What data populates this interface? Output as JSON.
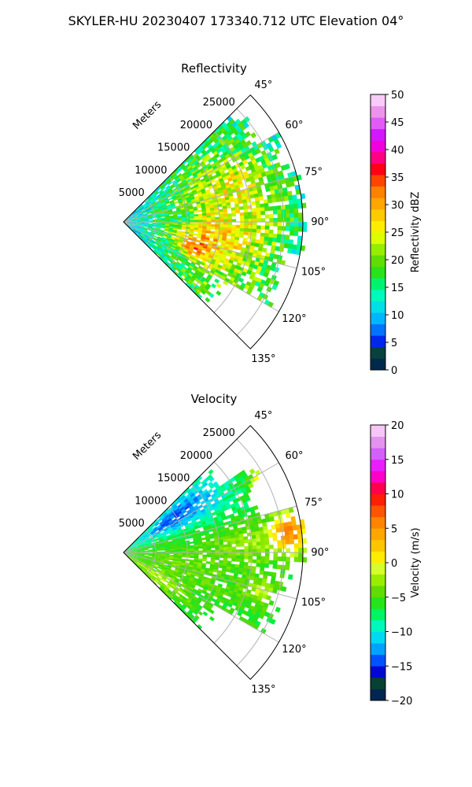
{
  "figure": {
    "title": "SKYLER-HU  20230407  173340.712 UTC Elevation 04°"
  },
  "colors": {
    "ring_grid": "#b0b0b0",
    "frame": "#000000"
  },
  "chart_data": [
    {
      "type": "heatmap",
      "subtype": "polar-sector-ppi",
      "title": "Reflectivity",
      "range_axis_label": "Meters",
      "range_ticks": [
        5000,
        10000,
        15000,
        20000,
        25000
      ],
      "range_tick_labels": [
        "5000",
        "10000",
        "15000",
        "20000",
        "25000"
      ],
      "azimuth_ticks": [
        45,
        60,
        75,
        90,
        105,
        120,
        135
      ],
      "azimuth_tick_labels": [
        "45°",
        "60°",
        "75°",
        "90°",
        "105°",
        "120°",
        "135°"
      ],
      "azimuth_range": [
        45,
        135
      ],
      "colorbar": {
        "label": "Reflectivity dBZ",
        "range": [
          0,
          50
        ],
        "ticks": [
          0,
          5,
          10,
          15,
          20,
          25,
          30,
          35,
          40,
          45,
          50
        ],
        "tick_labels": [
          "0",
          "5",
          "10",
          "15",
          "20",
          "25",
          "30",
          "35",
          "40",
          "45",
          "50"
        ],
        "stops": [
          {
            "v": 0,
            "c": "#001a66"
          },
          {
            "v": 1.5,
            "c": "#003040"
          },
          {
            "v": 3,
            "c": "#0a4a2a"
          },
          {
            "v": 4,
            "c": "#0000cc"
          },
          {
            "v": 6,
            "c": "#0040ff"
          },
          {
            "v": 8,
            "c": "#0090ff"
          },
          {
            "v": 10,
            "c": "#00c8ff"
          },
          {
            "v": 12,
            "c": "#00e8e0"
          },
          {
            "v": 14,
            "c": "#00ffb0"
          },
          {
            "v": 16,
            "c": "#00f060"
          },
          {
            "v": 18,
            "c": "#30e010"
          },
          {
            "v": 20,
            "c": "#66dd00"
          },
          {
            "v": 22,
            "c": "#99ee00"
          },
          {
            "v": 24,
            "c": "#ddff00"
          },
          {
            "v": 26,
            "c": "#ffee00"
          },
          {
            "v": 28,
            "c": "#ffcc00"
          },
          {
            "v": 30,
            "c": "#ffaa00"
          },
          {
            "v": 32,
            "c": "#ff8800"
          },
          {
            "v": 34,
            "c": "#ff5500"
          },
          {
            "v": 36,
            "c": "#ff0000"
          },
          {
            "v": 38,
            "c": "#ff0066"
          },
          {
            "v": 40,
            "c": "#ff00cc"
          },
          {
            "v": 42,
            "c": "#cc00ff"
          },
          {
            "v": 44,
            "c": "#dd44ff"
          },
          {
            "v": 46,
            "c": "#e87de8"
          },
          {
            "v": 48,
            "c": "#f2b0f2"
          },
          {
            "v": 50,
            "c": "#ffe8ff"
          }
        ]
      },
      "field": {
        "max_range_m": 28000,
        "blobs": [
          {
            "az": 90,
            "r": 16000,
            "saz": 40,
            "sr": 9000,
            "a": 17
          },
          {
            "az": 102,
            "r": 12000,
            "saz": 8,
            "sr": 3000,
            "a": 6
          },
          {
            "az": 110,
            "r": 11000,
            "saz": 4,
            "sr": 1500,
            "a": 9
          },
          {
            "az": 85,
            "r": 9000,
            "saz": 4,
            "sr": 1800,
            "a": -5
          },
          {
            "az": 70,
            "r": 20000,
            "saz": 5,
            "sr": 3000,
            "a": 4
          }
        ],
        "base": 8,
        "noise": 5,
        "coverage": [
          {
            "az0": 45,
            "az1": 60,
            "rmax": 24000
          },
          {
            "az0": 60,
            "az1": 75,
            "rmax": 26500
          },
          {
            "az0": 75,
            "az1": 100,
            "rmax": 28000
          },
          {
            "az0": 100,
            "az1": 120,
            "rmax": 25000
          },
          {
            "az0": 120,
            "az1": 135,
            "rmax": 17000
          }
        ]
      }
    },
    {
      "type": "heatmap",
      "subtype": "polar-sector-ppi",
      "title": "Velocity",
      "range_axis_label": "Meters",
      "range_ticks": [
        5000,
        10000,
        15000,
        20000,
        25000
      ],
      "range_tick_labels": [
        "5000",
        "10000",
        "15000",
        "20000",
        "25000"
      ],
      "azimuth_ticks": [
        45,
        60,
        75,
        90,
        105,
        120,
        135
      ],
      "azimuth_tick_labels": [
        "45°",
        "60°",
        "75°",
        "90°",
        "105°",
        "120°",
        "135°"
      ],
      "azimuth_range": [
        45,
        135
      ],
      "colorbar": {
        "label": "Velocity (m/s)",
        "range": [
          -20,
          20
        ],
        "ticks": [
          -20,
          -15,
          -10,
          -5,
          0,
          5,
          10,
          15,
          20
        ],
        "tick_labels": [
          "−20",
          "−15",
          "−10",
          "−5",
          "0",
          "5",
          "10",
          "15",
          "20"
        ],
        "stops": [
          {
            "v": -20,
            "c": "#001a66"
          },
          {
            "v": -18.5,
            "c": "#003040"
          },
          {
            "v": -17,
            "c": "#0a4a2a"
          },
          {
            "v": -16,
            "c": "#0000cc"
          },
          {
            "v": -14.5,
            "c": "#0040ff"
          },
          {
            "v": -13,
            "c": "#0090ff"
          },
          {
            "v": -11.5,
            "c": "#00c8ff"
          },
          {
            "v": -10,
            "c": "#00f0e0"
          },
          {
            "v": -8.5,
            "c": "#00ffa0"
          },
          {
            "v": -7,
            "c": "#00f040"
          },
          {
            "v": -5.5,
            "c": "#30e010"
          },
          {
            "v": -4,
            "c": "#66dd00"
          },
          {
            "v": -2.5,
            "c": "#99ee00"
          },
          {
            "v": -1,
            "c": "#ccff33"
          },
          {
            "v": 0,
            "c": "#ffff00"
          },
          {
            "v": 1.5,
            "c": "#ffdd00"
          },
          {
            "v": 3,
            "c": "#ffbb00"
          },
          {
            "v": 5,
            "c": "#ff9900"
          },
          {
            "v": 7,
            "c": "#ff6600"
          },
          {
            "v": 9,
            "c": "#ff2200"
          },
          {
            "v": 10.5,
            "c": "#ff0033"
          },
          {
            "v": 12,
            "c": "#ff00aa"
          },
          {
            "v": 13.5,
            "c": "#ff00ff"
          },
          {
            "v": 15,
            "c": "#cc44ff"
          },
          {
            "v": 17,
            "c": "#dd88ee"
          },
          {
            "v": 18.5,
            "c": "#eeaaee"
          },
          {
            "v": 20,
            "c": "#ffe8ff"
          }
        ]
      },
      "field": {
        "max_range_m": 28000,
        "blobs": [
          {
            "az": 55,
            "r": 10000,
            "saz": 9,
            "sr": 6000,
            "a": -8
          },
          {
            "az": 85,
            "r": 20000,
            "saz": 6,
            "sr": 4000,
            "a": 3
          },
          {
            "az": 100,
            "r": 10000,
            "saz": 12,
            "sr": 6000,
            "a": 2
          },
          {
            "az": 82,
            "r": 26000,
            "saz": 5,
            "sr": 2000,
            "a": 11
          },
          {
            "az": 63,
            "r": 24500,
            "saz": 4,
            "sr": 1500,
            "a": 12
          },
          {
            "az": 105,
            "r": 22000,
            "saz": 4,
            "sr": 2000,
            "a": 4
          },
          {
            "az": 125,
            "r": 6000,
            "saz": 6,
            "sr": 4000,
            "a": 4
          }
        ],
        "base": -6,
        "noise": 1.5,
        "coverage": [
          {
            "az0": 45,
            "az1": 55,
            "rmax": 17000
          },
          {
            "az0": 55,
            "az1": 62,
            "rmax": 24000
          },
          {
            "az0": 62,
            "az1": 75,
            "rmax": 22000
          },
          {
            "az0": 75,
            "az1": 92,
            "rmax": 27500
          },
          {
            "az0": 92,
            "az1": 105,
            "rmax": 25000
          },
          {
            "az0": 105,
            "az1": 120,
            "rmax": 24000
          },
          {
            "az0": 120,
            "az1": 135,
            "rmax": 16000
          }
        ]
      }
    }
  ]
}
